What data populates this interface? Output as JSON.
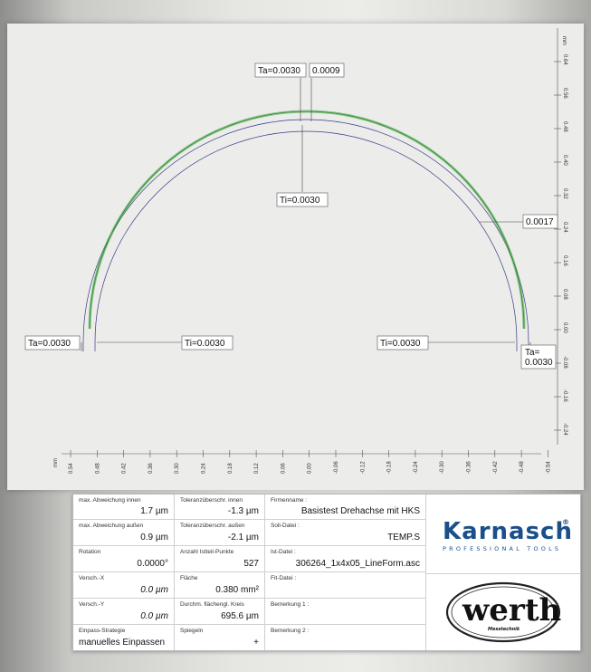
{
  "plot": {
    "top_axis_unit": "mm",
    "right_axis_unit": "mm",
    "bottom_axis_unit": "mm",
    "right_ticks": [
      "0.64",
      "0.56",
      "0.48",
      "0.40",
      "0.32",
      "0.24",
      "0.16",
      "0.08",
      "0.00",
      "-0.08",
      "-0.16",
      "-0.24"
    ],
    "bottom_ticks": [
      "0.54",
      "0.48",
      "0.42",
      "0.36",
      "0.30",
      "0.24",
      "0.18",
      "0.12",
      "0.06",
      "0.00",
      "-0.06",
      "-0.12",
      "-0.18",
      "-0.24",
      "-0.30",
      "-0.36",
      "-0.42",
      "-0.48",
      "-0.54"
    ],
    "annotations": {
      "ta_top": "Ta=0.0030",
      "dev_top": "0.0009",
      "ti_top": "Ti=0.0030",
      "dev_right": "0.0017",
      "ta_left": "Ta=0.0030",
      "ti_left": "Ti=0.0030",
      "ti_right": "Ti=0.0030",
      "ta_right_1": "Ta=",
      "ta_right_2": "0.0030"
    },
    "colors": {
      "measured": "#3ca03c",
      "tolerance": "#3a3a8a"
    }
  },
  "table": {
    "max_abw_innen": {
      "label": "max. Abweichung innen",
      "value": "1.7 µm"
    },
    "max_abw_aussen": {
      "label": "max. Abweichung außen",
      "value": "0.9 µm"
    },
    "rotation": {
      "label": "Rotation",
      "value": "0.0000°"
    },
    "versch_x": {
      "label": "Versch.-X",
      "value": "0.0 µm"
    },
    "versch_y": {
      "label": "Versch.-Y",
      "value": "0.0 µm"
    },
    "einpass": {
      "label": "Einpass-Strategie",
      "value": "manuelles Einpassen"
    },
    "tol_innen": {
      "label": "Toleranzüberschr. innen",
      "value": "-1.3 µm"
    },
    "tol_aussen": {
      "label": "Toleranzüberschr. außen",
      "value": "-2.1 µm"
    },
    "anzahl": {
      "label": "Anzahl Istteil-Punkte",
      "value": "527"
    },
    "flaeche": {
      "label": "Fläche",
      "value": "0.380 mm²"
    },
    "durchm": {
      "label": "Durchm. flächengl. Kreis",
      "value": "695.6 µm"
    },
    "spiegeln": {
      "label": "Spiegeln",
      "value": "+"
    },
    "firmenname": {
      "label": "Firmenname :",
      "value": "Basistest Drehachse mit HKS"
    },
    "soll": {
      "label": "Soll-Datei :",
      "value": "TEMP.S"
    },
    "ist": {
      "label": "Ist-Datei :",
      "value": "306264_1x4x05_LineForm.asc"
    },
    "fit": {
      "label": "Fit-Datei :",
      "value": ""
    },
    "bem1": {
      "label": "Bemerkung 1 :",
      "value": ""
    },
    "bem2": {
      "label": "Bemerkung 2 :",
      "value": ""
    }
  },
  "logos": {
    "karnasch": "Karnasch",
    "karnasch_sub": "PROFESSIONAL TOOLS",
    "werth": "werth",
    "werth_sub": "Messtechnik"
  }
}
